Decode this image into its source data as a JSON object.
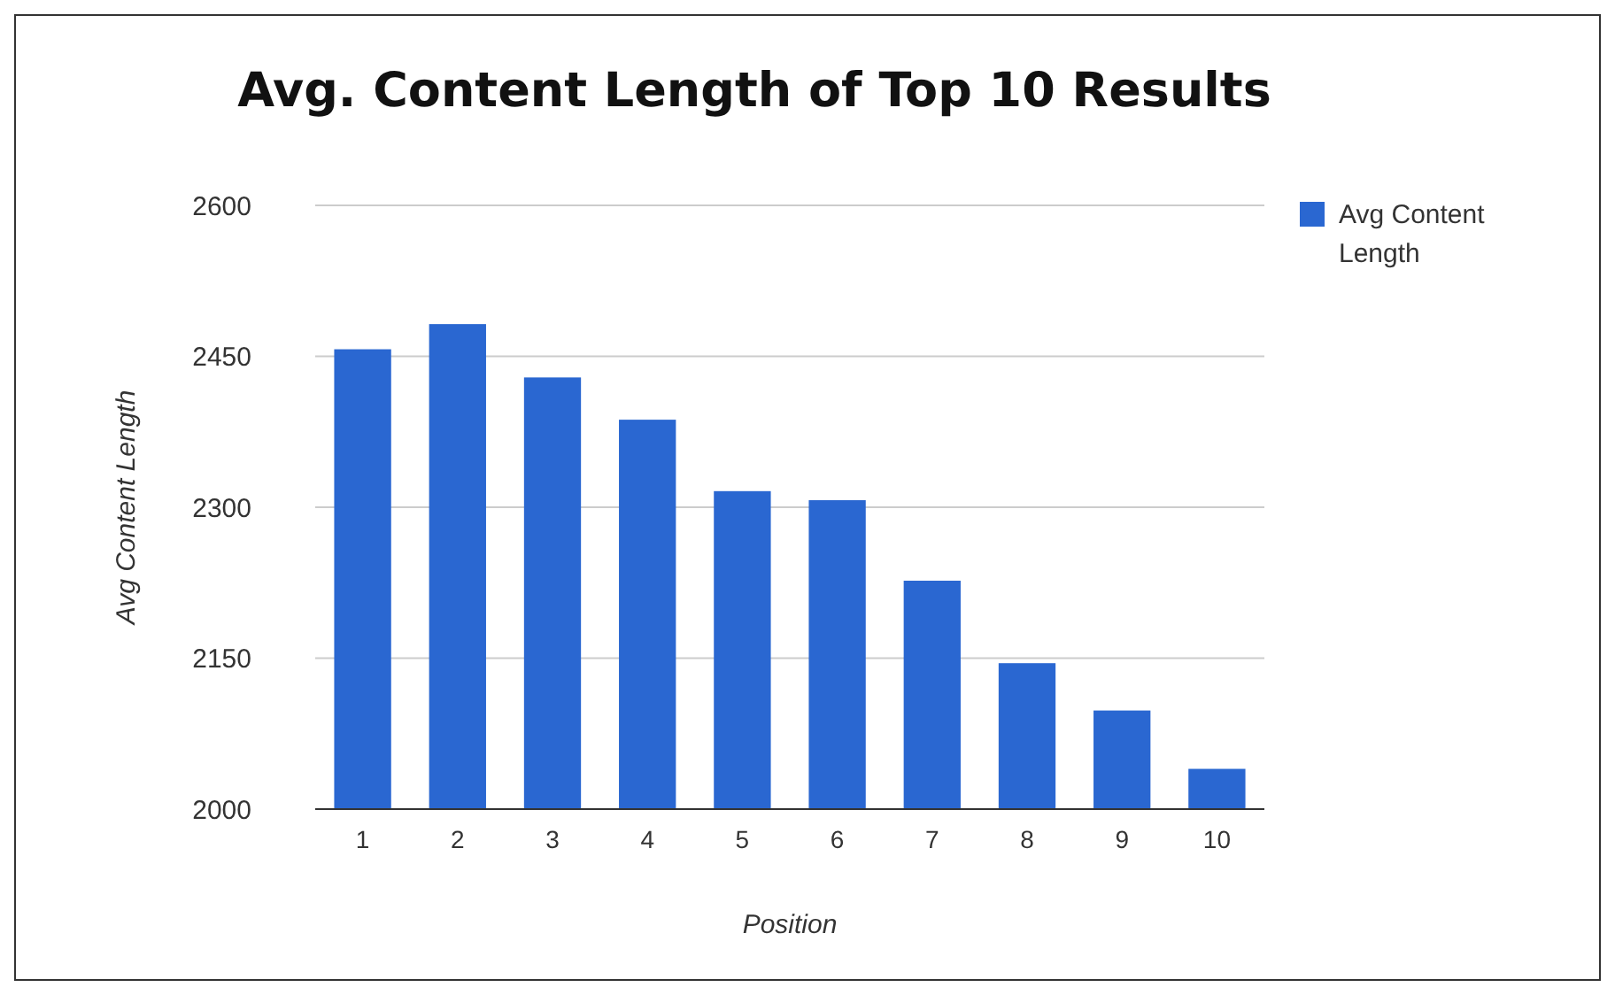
{
  "chart_data": {
    "type": "bar",
    "title": "Avg. Content Length of Top 10 Results",
    "xlabel": "Position",
    "ylabel": "Avg Content Length",
    "categories": [
      "1",
      "2",
      "3",
      "4",
      "5",
      "6",
      "7",
      "8",
      "9",
      "10"
    ],
    "series": [
      {
        "name": "Avg Content Length",
        "color": "#2a67d1",
        "values": [
          2457,
          2482,
          2429,
          2387,
          2316,
          2307,
          2227,
          2145,
          2098,
          2040
        ]
      }
    ],
    "ylim": [
      2000,
      2600
    ],
    "yticks": [
      2000,
      2150,
      2300,
      2450,
      2600
    ],
    "grid": "y",
    "legend": "right"
  }
}
